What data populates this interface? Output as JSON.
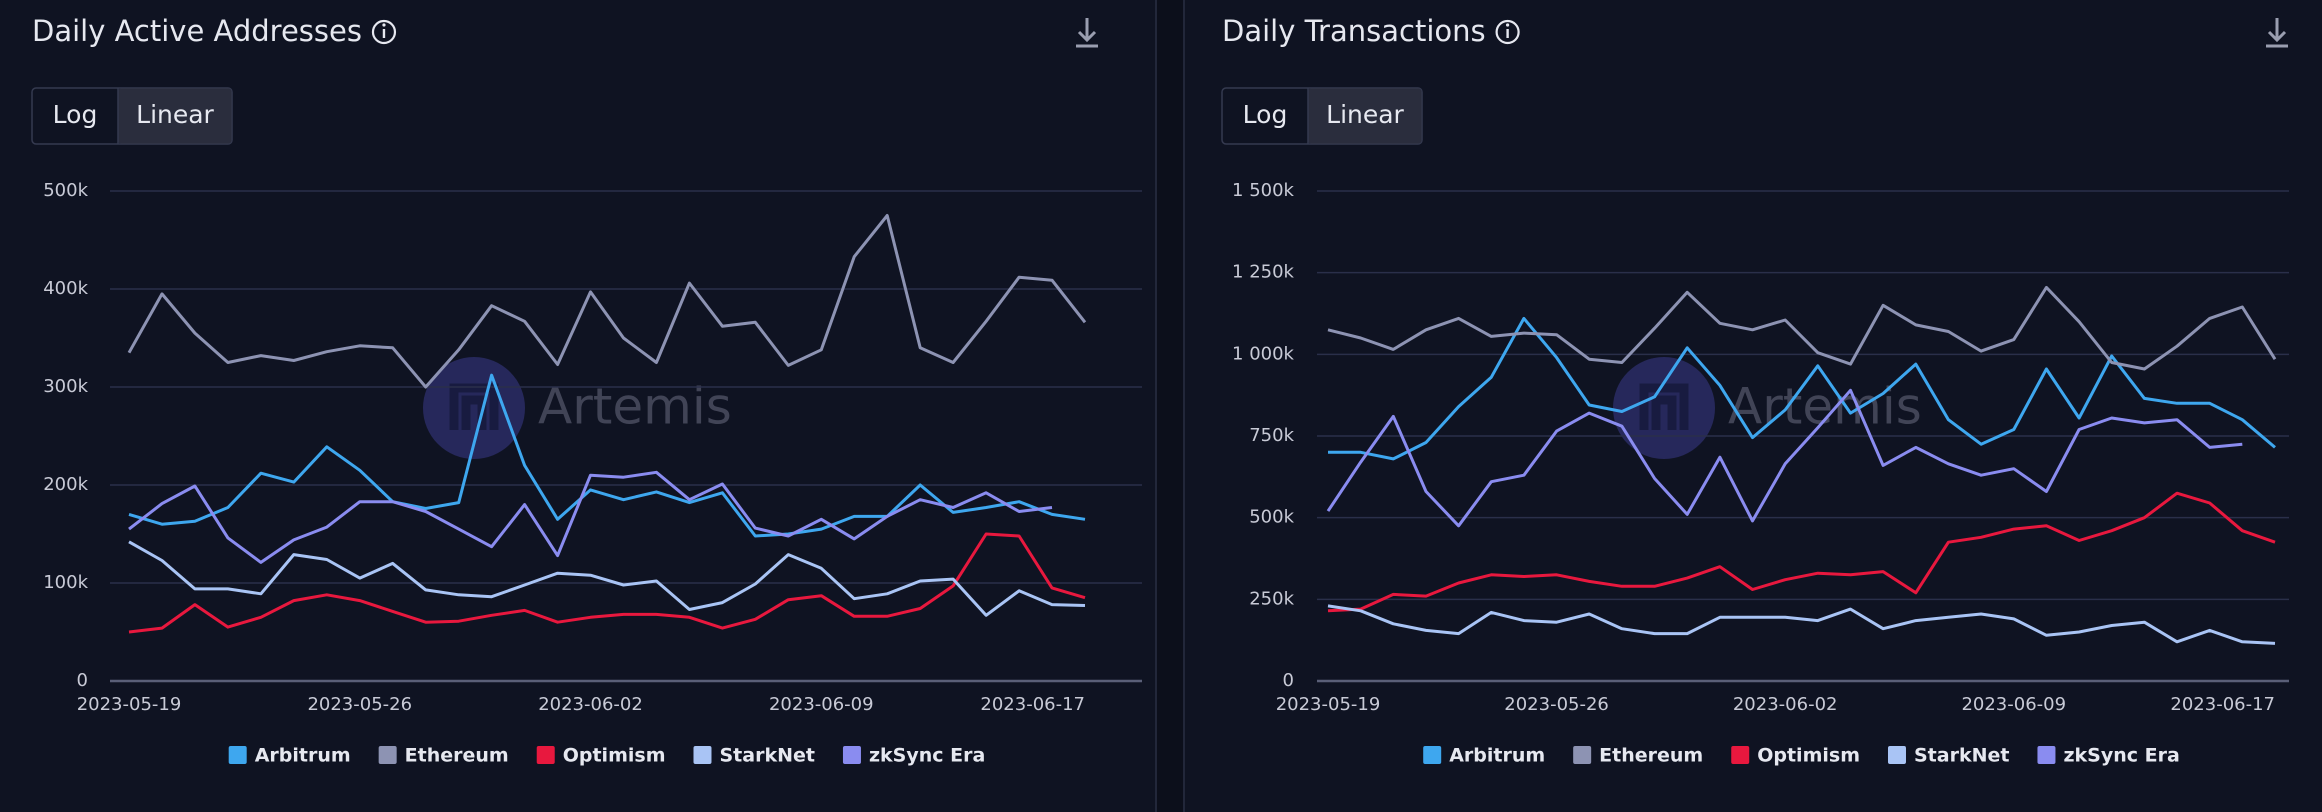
{
  "chart_data": [
    {
      "type": "line",
      "title": "Daily Active Addresses",
      "scale_options": [
        "Log",
        "Linear"
      ],
      "log_scale": false,
      "watermark": "Artemis",
      "grid": true,
      "categories": [
        "2023-05-19",
        null,
        null,
        null,
        null,
        null,
        null,
        "2023-05-26",
        null,
        null,
        null,
        null,
        null,
        null,
        "2023-06-02",
        null,
        null,
        null,
        null,
        null,
        null,
        "2023-06-09",
        null,
        null,
        null,
        null,
        null,
        null,
        null,
        "2023-06-17"
      ],
      "ylim": [
        0,
        500
      ],
      "yticks": [
        0,
        {
          "value": 100,
          "label": "100k"
        },
        {
          "value": 200,
          "label": "200k"
        },
        {
          "value": 300,
          "label": "300k"
        },
        {
          "value": 400,
          "label": "400k"
        },
        {
          "value": 500,
          "label": "500k"
        }
      ],
      "series": [
        {
          "name": "Arbitrum",
          "color": "#3ea7ef",
          "values": [
            170,
            160,
            163,
            177,
            212,
            203,
            239,
            215,
            183,
            176,
            182,
            312,
            220,
            165,
            195,
            185,
            193,
            182,
            192,
            148,
            150,
            155,
            168,
            168,
            200,
            172,
            177,
            183,
            170,
            165
          ]
        },
        {
          "name": "Ethereum",
          "color": "#8d93b3",
          "values": [
            335,
            395,
            355,
            325,
            332,
            327,
            336,
            342,
            340,
            300,
            338,
            383,
            367,
            323,
            397,
            350,
            325,
            406,
            362,
            366,
            322,
            338,
            433,
            475,
            340,
            325,
            367,
            412,
            409,
            366
          ]
        },
        {
          "name": "Optimism",
          "color": "#e8183e",
          "values": [
            50,
            54,
            78,
            55,
            65,
            82,
            88,
            82,
            71,
            60,
            61,
            67,
            72,
            60,
            65,
            68,
            68,
            65,
            54,
            63,
            83,
            87,
            66,
            66,
            74,
            97,
            150,
            148,
            95,
            85
          ]
        },
        {
          "name": "StarkNet",
          "color": "#a9c4f5",
          "values": [
            142,
            123,
            94,
            94,
            89,
            129,
            124,
            105,
            120,
            93,
            88,
            86,
            98,
            110,
            108,
            98,
            102,
            73,
            80,
            99,
            129,
            115,
            84,
            89,
            102,
            104,
            67,
            92,
            78,
            77
          ]
        },
        {
          "name": "zkSync Era",
          "color": "#8a8cf0",
          "values": [
            155,
            181,
            199,
            146,
            121,
            144,
            157,
            183,
            183,
            173,
            155,
            137,
            180,
            128,
            210,
            208,
            213,
            185,
            201,
            156,
            148,
            165,
            145,
            168,
            185,
            177,
            192,
            173,
            177,
            null
          ]
        }
      ]
    },
    {
      "type": "line",
      "title": "Daily Transactions",
      "scale_options": [
        "Log",
        "Linear"
      ],
      "log_scale": false,
      "watermark": "Artemis",
      "grid": true,
      "categories": [
        "2023-05-19",
        null,
        null,
        null,
        null,
        null,
        null,
        "2023-05-26",
        null,
        null,
        null,
        null,
        null,
        null,
        "2023-06-02",
        null,
        null,
        null,
        null,
        null,
        null,
        "2023-06-09",
        null,
        null,
        null,
        null,
        null,
        null,
        null,
        "2023-06-17"
      ],
      "ylim": [
        0,
        1500
      ],
      "yticks": [
        0,
        {
          "value": 250,
          "label": "250k"
        },
        {
          "value": 500,
          "label": "500k"
        },
        {
          "value": 750,
          "label": "750k"
        },
        {
          "value": 1000,
          "label": "1 000k"
        },
        {
          "value": 1250,
          "label": "1 250k"
        },
        {
          "value": 1500,
          "label": "1 500k"
        }
      ],
      "series": [
        {
          "name": "Arbitrum",
          "color": "#3ea7ef",
          "values": [
            700,
            700,
            680,
            730,
            840,
            930,
            1110,
            990,
            845,
            825,
            870,
            1020,
            905,
            745,
            830,
            965,
            820,
            880,
            970,
            800,
            725,
            770,
            955,
            805,
            995,
            865,
            850,
            850,
            800,
            715
          ]
        },
        {
          "name": "Ethereum",
          "color": "#8d93b3",
          "values": [
            1075,
            1050,
            1015,
            1075,
            1110,
            1055,
            1065,
            1060,
            985,
            975,
            1080,
            1190,
            1095,
            1075,
            1105,
            1005,
            970,
            1150,
            1090,
            1070,
            1010,
            1045,
            1205,
            1100,
            975,
            955,
            1025,
            1110,
            1145,
            985
          ]
        },
        {
          "name": "Optimism",
          "color": "#e8183e",
          "values": [
            215,
            220,
            265,
            260,
            300,
            325,
            320,
            325,
            305,
            290,
            290,
            315,
            350,
            280,
            310,
            330,
            325,
            335,
            270,
            425,
            440,
            465,
            475,
            430,
            460,
            500,
            575,
            545,
            460,
            425
          ]
        },
        {
          "name": "StarkNet",
          "color": "#a9c4f5",
          "values": [
            230,
            215,
            175,
            155,
            145,
            210,
            185,
            180,
            205,
            160,
            145,
            145,
            195,
            195,
            195,
            185,
            220,
            160,
            185,
            195,
            205,
            190,
            140,
            150,
            170,
            180,
            120,
            155,
            120,
            115
          ]
        },
        {
          "name": "zkSync Era",
          "color": "#8a8cf0",
          "values": [
            520,
            670,
            810,
            580,
            475,
            610,
            630,
            765,
            820,
            780,
            620,
            510,
            685,
            490,
            665,
            775,
            890,
            660,
            715,
            665,
            630,
            650,
            580,
            770,
            805,
            790,
            800,
            715,
            725,
            null
          ]
        }
      ]
    }
  ]
}
